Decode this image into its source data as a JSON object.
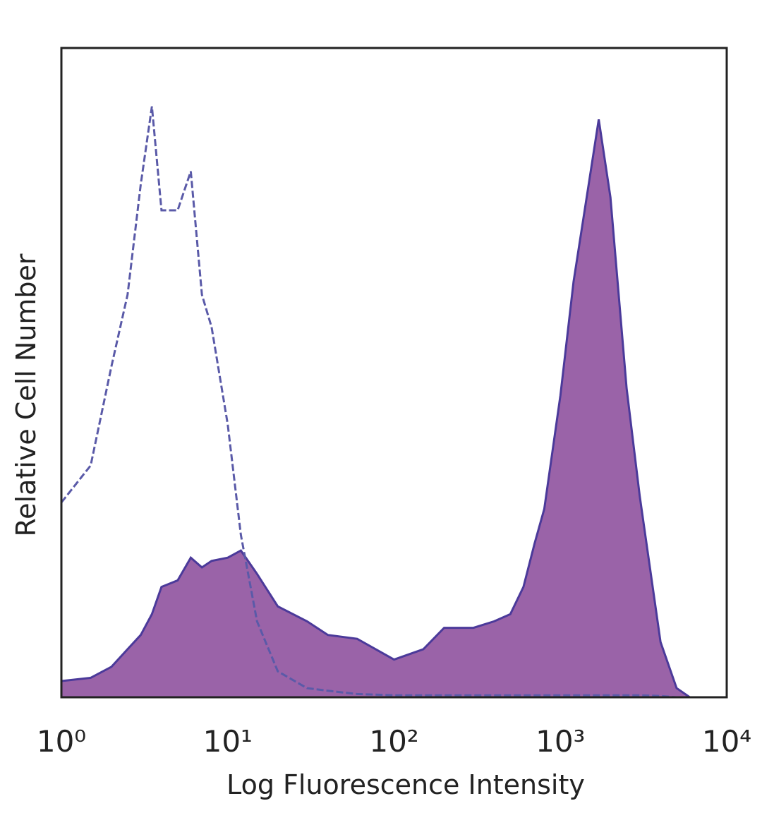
{
  "chart_data": {
    "type": "histogram-overlay",
    "x_label": "Log Fluorescence Intensity",
    "y_label": "Relative Cell Number",
    "x_log": true,
    "xlim": [
      1,
      10000
    ],
    "ylim": [
      0,
      100
    ],
    "xticks": [
      {
        "value": 1,
        "label": "10⁰"
      },
      {
        "value": 10,
        "label": "10¹"
      },
      {
        "value": 100,
        "label": "10²"
      },
      {
        "value": 1000,
        "label": "10³"
      },
      {
        "value": 10000,
        "label": "10⁴"
      }
    ],
    "grid": false,
    "x": [
      1,
      1.5,
      2,
      2.5,
      3,
      3.5,
      4,
      5,
      6,
      7,
      8,
      10,
      12,
      15,
      20,
      30,
      40,
      60,
      100,
      150,
      200,
      300,
      400,
      500,
      600,
      700,
      800,
      1000,
      1200,
      1500,
      1700,
      2000,
      2500,
      3000,
      4000,
      5000,
      6000
    ],
    "series": [
      {
        "color": "#4b3a9a",
        "fill": "#9a63a8",
        "filled": true,
        "values": [
          2.5,
          3,
          4.7,
          7.4,
          9.6,
          12.8,
          17,
          18,
          21.5,
          20,
          21,
          21.5,
          22.6,
          19,
          14,
          11.7,
          9.6,
          9,
          5.8,
          7.4,
          10.7,
          10.7,
          11.7,
          12.8,
          17,
          23.7,
          29,
          46.5,
          64,
          80,
          89,
          77,
          47.6,
          31,
          8.5,
          1.4,
          0
        ]
      },
      {
        "color": "#5a5aa8",
        "filled": false,
        "dashed": true,
        "values": [
          30,
          35.7,
          51,
          62,
          79,
          91,
          75,
          75,
          81,
          62,
          57,
          42,
          25,
          11.7,
          4,
          1.4,
          1,
          0.5,
          0.3,
          0.3,
          0.3,
          0.3,
          0.3,
          0.3,
          0.3,
          0.3,
          0.3,
          0.3,
          0.3,
          0.3,
          0.3,
          0.3,
          0.3,
          0.3,
          0.2,
          0,
          0
        ]
      }
    ]
  }
}
